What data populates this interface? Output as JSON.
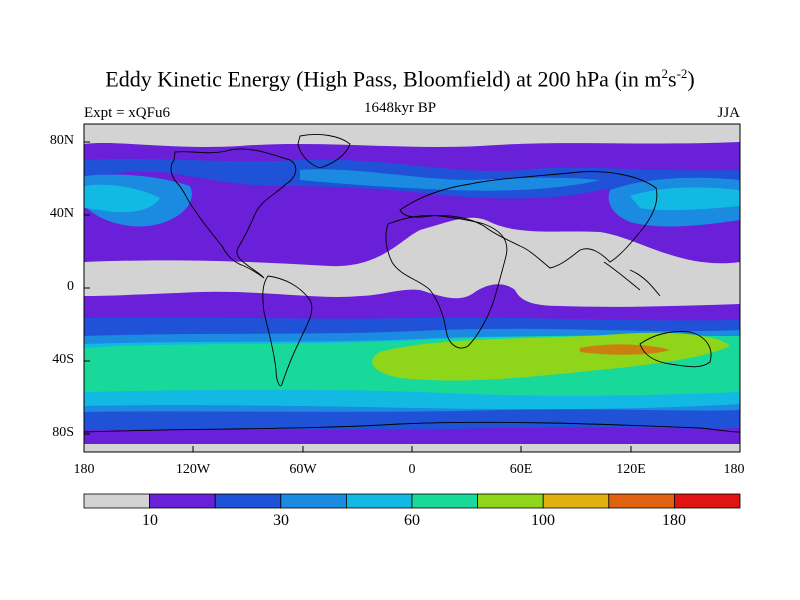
{
  "map": {
    "title_main": "Eddy Kinetic Energy (High Pass, Bloomfield) at 200 hPa (in m",
    "title_sup1": "2",
    "title_mid": "s",
    "title_sup2": "-2",
    "title_end": ")",
    "experiment": "Expt = xQFu6",
    "period": "1648kyr BP",
    "season": "JJA",
    "lat_ticks": [
      "80N",
      "40N",
      "0",
      "40S",
      "80S"
    ],
    "lon_ticks": [
      "180",
      "120W",
      "60W",
      "0",
      "60E",
      "120E",
      "180"
    ],
    "colorbar": {
      "colors": [
        "#d3d3d3",
        "#6a1fd8",
        "#1f52d6",
        "#1a8be0",
        "#12b9e2",
        "#19d99a",
        "#8fd61a",
        "#e0b10e",
        "#e0610f",
        "#e01414"
      ],
      "labels": [
        "10",
        "30",
        "60",
        "100",
        "180"
      ]
    }
  }
}
